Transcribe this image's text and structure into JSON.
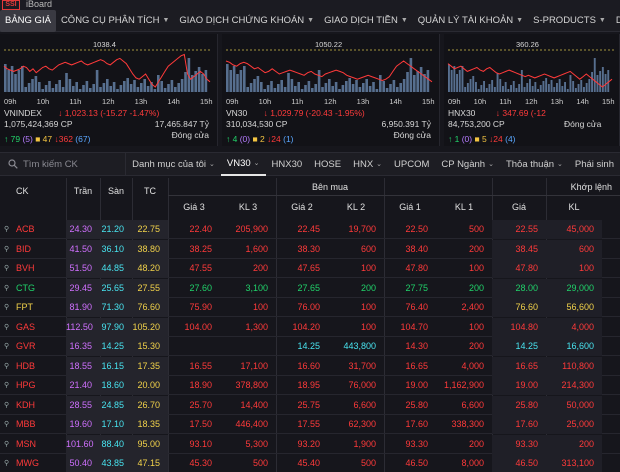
{
  "app": {
    "logo": "SSI",
    "title": "iBoard"
  },
  "menu": [
    {
      "label": "BẢNG GIÁ",
      "chev": false
    },
    {
      "label": "CÔNG CỤ PHÂN TÍCH",
      "chev": true
    },
    {
      "label": "GIAO DỊCH CHỨNG KHOÁN",
      "chev": true
    },
    {
      "label": "GIAO DỊCH TIỀN",
      "chev": true
    },
    {
      "label": "QUẢN LÝ TÀI KHOẢN",
      "chev": true
    },
    {
      "label": "S-PRODUCTS",
      "chev": true
    },
    {
      "label": "DỊCH VỤ HỖ TRỢ",
      "chev": true
    }
  ],
  "indices": [
    {
      "top_value": "1038.4",
      "times": [
        "09h",
        "10h",
        "11h",
        "12h",
        "13h",
        "14h",
        "15h"
      ],
      "name": "VNINDEX",
      "change": "1,023.13 (-15.27 -1.47%)",
      "volume": "1,075,424,369 CP",
      "value": "17,465.847 Tỷ",
      "status": "",
      "up": "79",
      "ceil": "(5)",
      "same": "47",
      "down": "362",
      "floor": "(67)"
    },
    {
      "top_value": "1050.22",
      "times": [
        "09h",
        "10h",
        "11h",
        "12h",
        "13h",
        "14h",
        "15h"
      ],
      "name": "VN30",
      "change": "1,029.79 (-20.43 -1.95%)",
      "volume": "310,034,530 CP",
      "value": "6,950.391 Tỷ",
      "status": "Đóng cửa",
      "up": "4",
      "ceil": "(0)",
      "same": "2",
      "down": "24",
      "floor": "(1)"
    },
    {
      "top_value": "360.26",
      "times": [
        "09h",
        "10h",
        "11h",
        "12h",
        "13h",
        "14h",
        "15h"
      ],
      "name": "HNX30",
      "change": "347.69 (-12",
      "volume": "84,753,200 CP",
      "value": "",
      "status": "Đóng cửa",
      "up": "1",
      "ceil": "(0)",
      "same": "5",
      "down": "24",
      "floor": "(4)"
    }
  ],
  "status_first": "Đóng cửa",
  "filters": {
    "search_placeholder": "Tìm kiếm CK",
    "items": [
      {
        "label": "Danh mục của tôi",
        "chev": true
      },
      {
        "label": "VN30",
        "chev": true,
        "active": true
      },
      {
        "label": "HNX30",
        "chev": false
      },
      {
        "label": "HOSE",
        "chev": false
      },
      {
        "label": "HNX",
        "chev": true
      },
      {
        "label": "UPCOM",
        "chev": false
      },
      {
        "label": "CP Ngành",
        "chev": true
      },
      {
        "label": "Thỏa thuận",
        "chev": true
      },
      {
        "label": "Phái sinh",
        "chev": false
      }
    ]
  },
  "table": {
    "group_buy": "Bên mua",
    "group_match": "Khớp lệnh",
    "columns": [
      "CK",
      "Trần",
      "Sàn",
      "TC",
      "Giá 3",
      "KL 3",
      "Giá 2",
      "KL 2",
      "Giá 1",
      "KL 1",
      "Giá",
      "KL"
    ],
    "rows": [
      {
        "ck": "ACB",
        "tran": "24.30",
        "san": "21.20",
        "tc": "22.75",
        "g3": "22.40",
        "kl3": "205,900",
        "g2": "22.45",
        "kl2": "19,700",
        "g1": "22.50",
        "kl1": "500",
        "g": "22.55",
        "kl": "45,000",
        "color": "red"
      },
      {
        "ck": "BID",
        "tran": "41.50",
        "san": "36.10",
        "tc": "38.80",
        "g3": "38.25",
        "kl3": "1,600",
        "g2": "38.30",
        "kl2": "600",
        "g1": "38.40",
        "kl1": "200",
        "g": "38.45",
        "kl": "600",
        "color": "red"
      },
      {
        "ck": "BVH",
        "tran": "51.50",
        "san": "44.85",
        "tc": "48.20",
        "g3": "47.55",
        "kl3": "200",
        "g2": "47.65",
        "kl2": "100",
        "g1": "47.80",
        "kl1": "100",
        "g": "47.80",
        "kl": "100",
        "color": "red"
      },
      {
        "ck": "CTG",
        "tran": "29.45",
        "san": "25.65",
        "tc": "27.55",
        "g3": "27.60",
        "kl3": "3,100",
        "g2": "27.65",
        "kl2": "200",
        "g1": "27.75",
        "kl1": "200",
        "g": "28.00",
        "kl": "29,000",
        "color": "green"
      },
      {
        "ck": "FPT",
        "tran": "81.90",
        "san": "71.30",
        "tc": "76.60",
        "g3": "75.90",
        "kl3": "100",
        "g2": "76.00",
        "kl2": "100",
        "g1": "76.40",
        "kl1": "2,400",
        "g": "76.60",
        "kl": "56,600",
        "color": "red",
        "g_color": "yellow",
        "ck_color": "yellow"
      },
      {
        "ck": "GAS",
        "tran": "112.50",
        "san": "97.90",
        "tc": "105.20",
        "g3": "104.00",
        "kl3": "1,300",
        "g2": "104.20",
        "kl2": "100",
        "g1": "104.70",
        "kl1": "100",
        "g": "104.80",
        "kl": "4,000",
        "color": "red"
      },
      {
        "ck": "GVR",
        "tran": "16.35",
        "san": "14.25",
        "tc": "15.30",
        "g3": "",
        "kl3": "",
        "g2": "14.25",
        "kl2": "443,800",
        "g1": "14.30",
        "kl1": "200",
        "g": "14.25",
        "kl": "16,600",
        "color": "red",
        "g2_color": "cyan",
        "g_color": "cyan"
      },
      {
        "ck": "HDB",
        "tran": "18.55",
        "san": "16.15",
        "tc": "17.35",
        "g3": "16.55",
        "kl3": "17,100",
        "g2": "16.60",
        "kl2": "31,700",
        "g1": "16.65",
        "kl1": "4,000",
        "g": "16.65",
        "kl": "110,800",
        "color": "red"
      },
      {
        "ck": "HPG",
        "tran": "21.40",
        "san": "18.60",
        "tc": "20.00",
        "g3": "18.90",
        "kl3": "378,800",
        "g2": "18.95",
        "kl2": "76,000",
        "g1": "19.00",
        "kl1": "1,162,900",
        "g": "19.00",
        "kl": "214,300",
        "color": "red"
      },
      {
        "ck": "KDH",
        "tran": "28.55",
        "san": "24.85",
        "tc": "26.70",
        "g3": "25.70",
        "kl3": "14,400",
        "g2": "25.75",
        "kl2": "6,600",
        "g1": "25.80",
        "kl1": "6,600",
        "g": "25.80",
        "kl": "50,000",
        "color": "red"
      },
      {
        "ck": "MBB",
        "tran": "19.60",
        "san": "17.10",
        "tc": "18.35",
        "g3": "17.50",
        "kl3": "446,400",
        "g2": "17.55",
        "kl2": "62,300",
        "g1": "17.60",
        "kl1": "338,300",
        "g": "17.60",
        "kl": "25,000",
        "color": "red"
      },
      {
        "ck": "MSN",
        "tran": "101.60",
        "san": "88.40",
        "tc": "95.00",
        "g3": "93.10",
        "kl3": "5,300",
        "g2": "93.20",
        "kl2": "1,900",
        "g1": "93.30",
        "kl1": "200",
        "g": "93.30",
        "kl": "200",
        "color": "red"
      },
      {
        "ck": "MWG",
        "tran": "50.40",
        "san": "43.85",
        "tc": "47.15",
        "g3": "45.30",
        "kl3": "500",
        "g2": "45.40",
        "kl2": "500",
        "g1": "46.50",
        "kl1": "8,000",
        "g": "46.50",
        "kl": "313,100",
        "color": "red"
      }
    ]
  },
  "colors": {
    "red": "#ff3a3a",
    "green": "#20d26a",
    "purple": "#d070ff",
    "cyan": "#48e4f0",
    "yellow": "#f2d24a"
  }
}
